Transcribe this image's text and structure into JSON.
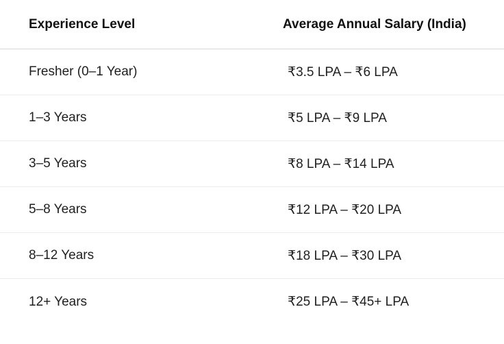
{
  "table": {
    "headers": [
      "Experience Level",
      "Average Annual Salary (India)"
    ],
    "rows": [
      [
        "Fresher (0–1 Year)",
        "₹3.5 LPA – ₹6 LPA"
      ],
      [
        "1–3 Years",
        "₹5 LPA – ₹9 LPA"
      ],
      [
        "3–5 Years",
        "₹8 LPA – ₹14 LPA"
      ],
      [
        "5–8 Years",
        "₹12 LPA – ₹20 LPA"
      ],
      [
        "8–12 Years",
        "₹18 LPA – ₹30 LPA"
      ],
      [
        "12+ Years",
        "₹25 LPA – ₹45+ LPA"
      ]
    ]
  }
}
